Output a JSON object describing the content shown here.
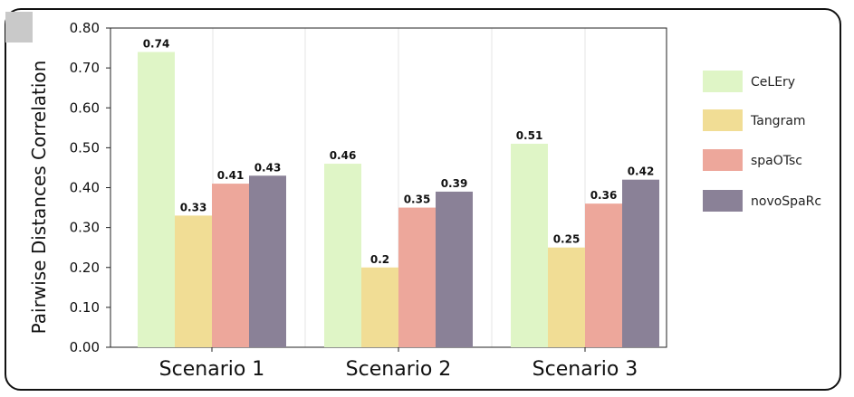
{
  "chart_data": {
    "type": "bar",
    "categories": [
      "Scenario 1",
      "Scenario 2",
      "Scenario 3"
    ],
    "series": [
      {
        "name": "CeLEry",
        "values": [
          0.74,
          0.46,
          0.51
        ],
        "labels": [
          "0.74",
          "0.46",
          "0.51"
        ],
        "color": "#dff5c6"
      },
      {
        "name": "Tangram",
        "values": [
          0.33,
          0.2,
          0.25
        ],
        "labels": [
          "0.33",
          "0.2",
          "0.25"
        ],
        "color": "#f1dd95"
      },
      {
        "name": "spaOTsc",
        "values": [
          0.41,
          0.35,
          0.36
        ],
        "labels": [
          "0.41",
          "0.35",
          "0.36"
        ],
        "color": "#eda79b"
      },
      {
        "name": "novoSpaRc",
        "values": [
          0.43,
          0.39,
          0.42
        ],
        "labels": [
          "0.43",
          "0.39",
          "0.42"
        ],
        "color": "#8a8197"
      }
    ],
    "xlabel": "",
    "ylabel": "Pairwise Distances Correlation",
    "ylim": [
      0,
      0.8
    ],
    "yticks": [
      "0.00",
      "0.10",
      "0.20",
      "0.30",
      "0.40",
      "0.50",
      "0.60",
      "0.70",
      "0.80"
    ],
    "grid": "vertical",
    "legend_placement": "right"
  }
}
